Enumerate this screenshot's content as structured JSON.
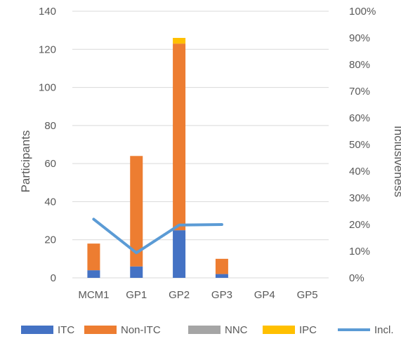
{
  "chart_data": {
    "type": "bar",
    "stacked": true,
    "categories": [
      "MCM1",
      "GP1",
      "GP2",
      "GP3",
      "GP4",
      "GP5"
    ],
    "series": [
      {
        "name": "ITC",
        "kind": "bar",
        "color": "#4472C4",
        "values": [
          4,
          6,
          25,
          2,
          0,
          0
        ]
      },
      {
        "name": "Non-ITC",
        "kind": "bar",
        "color": "#ED7D31",
        "values": [
          14,
          58,
          98,
          8,
          0,
          0
        ]
      },
      {
        "name": "NNC",
        "kind": "bar",
        "color": "#A5A5A5",
        "values": [
          0,
          0,
          0,
          0,
          0,
          0
        ]
      },
      {
        "name": "IPC",
        "kind": "bar",
        "color": "#FFC000",
        "values": [
          0,
          0,
          3,
          0,
          0,
          0
        ]
      },
      {
        "name": "Incl.",
        "kind": "line",
        "axis": "right",
        "color": "#5B9BD5",
        "values": [
          0.22,
          0.094,
          0.198,
          0.2,
          null,
          null
        ]
      }
    ],
    "ylabel": "Participants",
    "ylim": [
      0,
      140
    ],
    "yticks": [
      "0",
      "20",
      "40",
      "60",
      "80",
      "100",
      "120",
      "140"
    ],
    "y2label": "Inclusiveness",
    "y2lim": [
      0,
      1
    ],
    "y2ticks": [
      "0%",
      "10%",
      "20%",
      "30%",
      "40%",
      "50%",
      "60%",
      "70%",
      "80%",
      "90%",
      "100%"
    ],
    "grid": true,
    "legend": "bottom"
  }
}
